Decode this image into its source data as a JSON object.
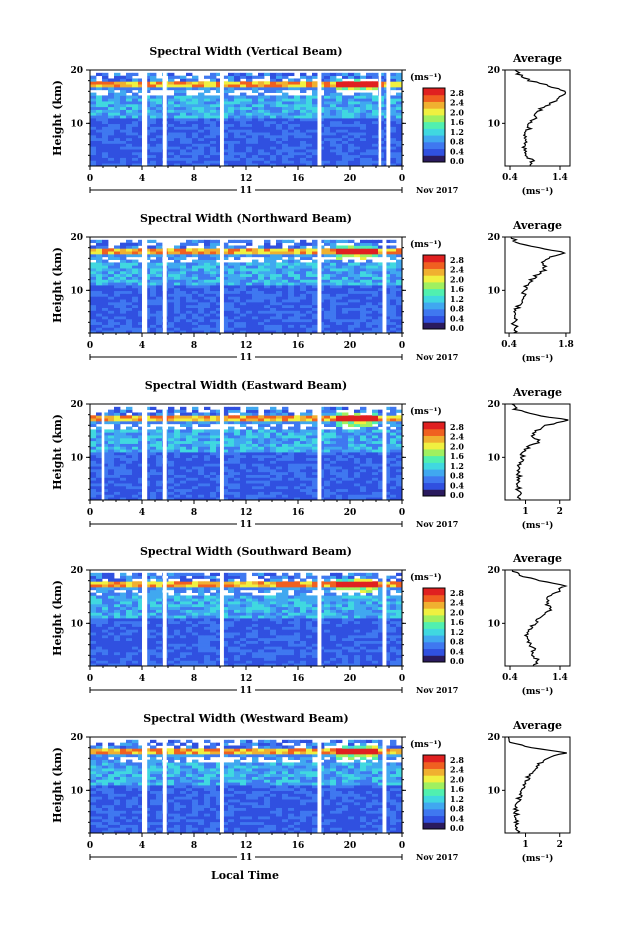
{
  "figure": {
    "time_axis_label": "Local Time",
    "date_label": "Nov 2017",
    "day_label": "11",
    "colorbar_unit": "(ms⁻¹)",
    "colorbar_ticks": [
      "0.0",
      "0.4",
      "0.8",
      "1.2",
      "1.6",
      "2.0",
      "2.4",
      "2.8"
    ],
    "colormap": [
      "#2a1a5e",
      "#3050e0",
      "#3f78f0",
      "#40a8f0",
      "#40d8e0",
      "#50f0b0",
      "#a0f060",
      "#f0f040",
      "#f0b030",
      "#f06020",
      "#e02020"
    ],
    "x_ticks": [
      "0",
      "4",
      "8",
      "12",
      "16",
      "20",
      "0"
    ],
    "y_ticks": [
      "20",
      "10"
    ],
    "ylabel": "Height (km)",
    "average_title": "Average",
    "average_xlabel": "(ms⁻¹)"
  },
  "chart_data": [
    {
      "type": "heatmap",
      "title": "Spectral Width (Vertical Beam)",
      "ylabel": "Height (km)",
      "x_range_hours": [
        0,
        24
      ],
      "y_range_km": [
        2,
        20
      ],
      "color_range": [
        0.0,
        3.0
      ],
      "data_gaps_hours": [
        [
          4.0,
          4.4
        ],
        [
          5.6,
          5.9
        ],
        [
          10.0,
          10.3
        ],
        [
          17.5,
          17.8
        ],
        [
          22.2,
          22.4
        ],
        [
          22.8,
          23.1
        ]
      ],
      "average_profile": {
        "title": "Average",
        "x_ticks": [
          "0.4",
          "1.4"
        ],
        "xlim": [
          0.3,
          1.6
        ],
        "height_km": [
          2,
          3,
          4,
          5,
          6,
          7,
          8,
          9,
          10,
          11,
          12,
          13,
          14,
          15,
          16,
          17,
          18,
          19,
          20
        ],
        "value": [
          0.78,
          0.85,
          0.7,
          0.72,
          0.68,
          0.74,
          0.7,
          0.78,
          0.8,
          0.9,
          0.95,
          1.05,
          1.3,
          1.4,
          1.5,
          1.2,
          0.8,
          0.6,
          0.5
        ]
      }
    },
    {
      "type": "heatmap",
      "title": "Spectral Width (Northward Beam)",
      "ylabel": "Height (km)",
      "x_range_hours": [
        0,
        24
      ],
      "y_range_km": [
        2,
        20
      ],
      "color_range": [
        0.0,
        3.0
      ],
      "data_gaps_hours": [
        [
          4.0,
          4.4
        ],
        [
          5.6,
          5.9
        ],
        [
          10.0,
          10.3
        ],
        [
          17.5,
          17.8
        ],
        [
          22.5,
          22.8
        ]
      ],
      "average_profile": {
        "title": "Average",
        "x_ticks": [
          "0.4",
          "1.8"
        ],
        "xlim": [
          0.3,
          1.9
        ],
        "height_km": [
          2,
          3,
          4,
          5,
          6,
          7,
          8,
          9,
          10,
          11,
          12,
          13,
          14,
          15,
          16,
          17,
          18,
          19,
          20
        ],
        "value": [
          0.55,
          0.6,
          0.5,
          0.58,
          0.55,
          0.62,
          0.7,
          0.75,
          0.8,
          0.85,
          0.95,
          1.1,
          1.3,
          1.2,
          1.35,
          1.8,
          1.1,
          0.6,
          0.45
        ]
      }
    },
    {
      "type": "heatmap",
      "title": "Spectral Width (Eastward Beam)",
      "ylabel": "Height (km)",
      "x_range_hours": [
        0,
        24
      ],
      "y_range_km": [
        2,
        20
      ],
      "color_range": [
        0.0,
        3.0
      ],
      "data_gaps_hours": [
        [
          0.9,
          1.1
        ],
        [
          4.0,
          4.4
        ],
        [
          5.6,
          5.9
        ],
        [
          10.0,
          10.3
        ],
        [
          17.5,
          17.8
        ],
        [
          22.5,
          22.8
        ]
      ],
      "average_profile": {
        "title": "Average",
        "x_ticks": [
          "1",
          "2"
        ],
        "xlim": [
          0.4,
          2.3
        ],
        "height_km": [
          2,
          3,
          4,
          5,
          6,
          7,
          8,
          9,
          10,
          11,
          12,
          13,
          14,
          15,
          16,
          17,
          18,
          19,
          20
        ],
        "value": [
          0.8,
          0.85,
          0.8,
          0.78,
          0.8,
          0.82,
          0.8,
          0.85,
          0.9,
          0.95,
          1.1,
          1.4,
          1.2,
          1.3,
          1.6,
          2.2,
          1.3,
          0.7,
          0.6
        ]
      }
    },
    {
      "type": "heatmap",
      "title": "Spectral Width (Southward Beam)",
      "ylabel": "Height (km)",
      "x_range_hours": [
        0,
        24
      ],
      "y_range_km": [
        2,
        20
      ],
      "color_range": [
        0.0,
        3.0
      ],
      "data_gaps_hours": [
        [
          4.0,
          4.4
        ],
        [
          5.6,
          5.9
        ],
        [
          10.0,
          10.3
        ],
        [
          17.5,
          17.8
        ],
        [
          22.5,
          22.8
        ]
      ],
      "average_profile": {
        "title": "Average",
        "x_ticks": [
          "0.4",
          "1.4"
        ],
        "xlim": [
          0.3,
          1.6
        ],
        "height_km": [
          2,
          3,
          4,
          5,
          6,
          7,
          8,
          9,
          10,
          11,
          12,
          13,
          14,
          15,
          16,
          17,
          18,
          19,
          20
        ],
        "value": [
          0.9,
          0.95,
          0.85,
          0.88,
          0.8,
          0.75,
          0.72,
          0.8,
          0.9,
          1.0,
          1.15,
          1.2,
          1.1,
          1.2,
          1.35,
          1.5,
          1.0,
          0.6,
          0.45
        ]
      }
    },
    {
      "type": "heatmap",
      "title": "Spectral Width (Westward Beam)",
      "ylabel": "Height (km)",
      "x_range_hours": [
        0,
        24
      ],
      "y_range_km": [
        2,
        20
      ],
      "color_range": [
        0.0,
        3.0
      ],
      "data_gaps_hours": [
        [
          4.0,
          4.4
        ],
        [
          5.6,
          5.9
        ],
        [
          10.0,
          10.3
        ],
        [
          17.5,
          17.8
        ],
        [
          22.5,
          22.8
        ]
      ],
      "average_profile": {
        "title": "Average",
        "x_ticks": [
          "1",
          "2"
        ],
        "xlim": [
          0.4,
          2.3
        ],
        "height_km": [
          2,
          3,
          4,
          5,
          6,
          7,
          8,
          9,
          10,
          11,
          12,
          13,
          14,
          15,
          16,
          17,
          18,
          19,
          20
        ],
        "value": [
          0.75,
          0.8,
          0.7,
          0.75,
          0.72,
          0.75,
          0.78,
          0.85,
          0.95,
          1.0,
          1.05,
          1.1,
          1.3,
          1.4,
          1.6,
          2.2,
          1.2,
          0.6,
          0.5
        ]
      }
    }
  ]
}
